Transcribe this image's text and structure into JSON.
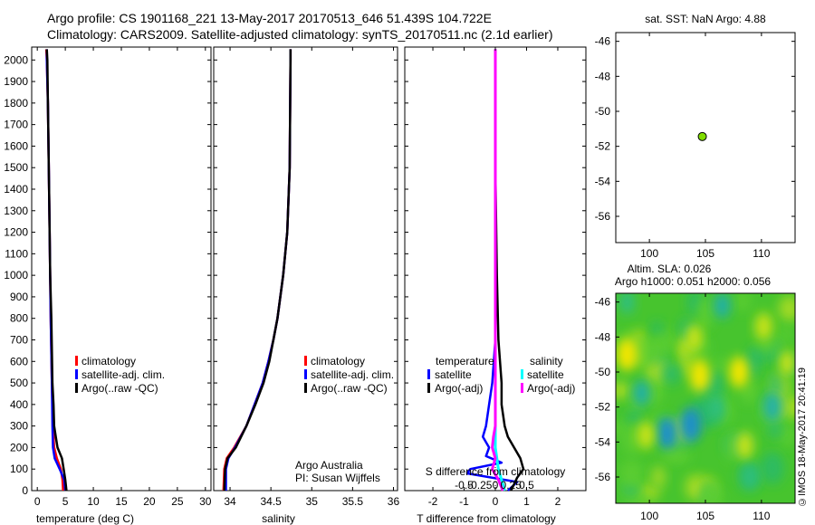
{
  "header": {
    "line1": "Argo profile: CS 1901168_221 13-May-2017 20170513_646 51.439S 104.722E",
    "line2": "Climatology: CARS2009. Satellite-adjusted climatology: synTS_20170511.nc (2.1d earlier)"
  },
  "footer": {
    "credit": "©IMOS 18-May-2017 20:41:19"
  },
  "colors": {
    "climatology": "#ff0000",
    "satellite": "#0000ff",
    "argo": "#000000",
    "sal_satellite": "#00ffff",
    "sal_argo": "#ff00ff",
    "float_marker": "#80dd00"
  },
  "chart_data": [
    {
      "id": "temperature",
      "type": "line",
      "xlabel": "temperature (deg C)",
      "ylabel": "",
      "xlim": [
        -1,
        31
      ],
      "ylim": [
        2060,
        0
      ],
      "xticks": [
        0,
        5,
        10,
        15,
        20,
        25,
        30
      ],
      "yticks": [
        0,
        100,
        200,
        300,
        400,
        500,
        600,
        700,
        800,
        900,
        1000,
        1100,
        1200,
        1300,
        1400,
        1500,
        1600,
        1700,
        1800,
        1900,
        2000
      ],
      "legend": [
        "climatology",
        "satellite-adj. clim.",
        "Argo(..raw -QC)"
      ],
      "series": [
        {
          "name": "climatology",
          "depth": [
            0,
            50,
            100,
            150,
            200,
            300,
            500,
            800,
            1000,
            1400,
            1800,
            2000,
            2050
          ],
          "values": [
            4.6,
            4.5,
            4.2,
            3.5,
            3.0,
            2.8,
            2.6,
            2.4,
            2.3,
            2.1,
            1.9,
            1.7,
            1.6
          ]
        },
        {
          "name": "satellite-adj. clim.",
          "depth": [
            0,
            50,
            100,
            150,
            200,
            300,
            500,
            800,
            1000,
            1400,
            1800,
            2000,
            2050
          ],
          "values": [
            5.0,
            4.8,
            4.0,
            3.1,
            2.8,
            2.7,
            2.6,
            2.4,
            2.3,
            2.1,
            1.9,
            1.7,
            1.7
          ]
        },
        {
          "name": "Argo(..raw -QC)",
          "depth": [
            0,
            50,
            100,
            150,
            200,
            250,
            300,
            400,
            500,
            800,
            1000,
            1400,
            1800,
            2000,
            2050
          ],
          "values": [
            5.2,
            5.0,
            4.7,
            4.4,
            3.6,
            3.3,
            3.0,
            2.9,
            2.7,
            2.5,
            2.3,
            2.1,
            1.9,
            1.8,
            1.7
          ]
        }
      ]
    },
    {
      "id": "salinity",
      "type": "line",
      "xlabel": "salinity",
      "ylabel": "",
      "xlim": [
        33.8,
        36.05
      ],
      "ylim": [
        2060,
        0
      ],
      "xticks": [
        34,
        34.5,
        35,
        35.5,
        36
      ],
      "legend": [
        "climatology",
        "satellite-adj. clim.",
        "Argo(..raw -QC)"
      ],
      "annotations": [
        "Argo Australia",
        "PI: Susan Wijffels"
      ],
      "series": [
        {
          "name": "climatology",
          "depth": [
            0,
            100,
            150,
            200,
            300,
            400,
            500,
            600,
            700,
            800,
            1000,
            1200,
            1500,
            2000,
            2050
          ],
          "values": [
            33.92,
            33.93,
            33.96,
            34.05,
            34.2,
            34.3,
            34.4,
            34.47,
            34.53,
            34.58,
            34.65,
            34.7,
            34.73,
            34.74,
            34.74
          ]
        },
        {
          "name": "satellite-adj. clim.",
          "depth": [
            0,
            100,
            150,
            200,
            300,
            400,
            500,
            600,
            700,
            800,
            1000,
            1200,
            1500,
            2000,
            2050
          ],
          "values": [
            33.95,
            33.95,
            33.98,
            34.06,
            34.2,
            34.3,
            34.4,
            34.47,
            34.53,
            34.58,
            34.65,
            34.7,
            34.73,
            34.74,
            34.74
          ]
        },
        {
          "name": "Argo(..raw -QC)",
          "depth": [
            0,
            100,
            150,
            200,
            300,
            400,
            500,
            600,
            700,
            800,
            1000,
            1200,
            1500,
            2000,
            2050
          ],
          "values": [
            33.93,
            33.94,
            33.97,
            34.07,
            34.2,
            34.31,
            34.41,
            34.48,
            34.53,
            34.58,
            34.65,
            34.7,
            34.73,
            34.74,
            34.74
          ]
        }
      ]
    },
    {
      "id": "differences",
      "type": "line",
      "xlabel": "T difference from climatology",
      "top_xlabel": "S difference from climatology",
      "xlim": [
        -2.9,
        2.9
      ],
      "ylim": [
        2060,
        0
      ],
      "xticks": [
        -2,
        -1,
        0,
        1,
        2
      ],
      "s_ticks": [
        -0.5,
        -0.25,
        0,
        0.25,
        0.5
      ],
      "legend_temperature": {
        "title": "temperature",
        "items": [
          "satellite",
          "Argo(-adj)"
        ]
      },
      "legend_salinity": {
        "title": "salinity",
        "items": [
          "satellite",
          "Argo(-adj)"
        ]
      },
      "series": [
        {
          "name": "T satellite",
          "depth": [
            0,
            40,
            80,
            100,
            130,
            160,
            200,
            250,
            300,
            400,
            500,
            700,
            1000,
            1500,
            2000,
            2050
          ],
          "values": [
            0.4,
            0.7,
            -0.9,
            -0.8,
            0.2,
            -0.3,
            -0.2,
            -0.4,
            -0.3,
            -0.2,
            -0.1,
            0.0,
            0.0,
            0.0,
            0.0,
            0.0
          ]
        },
        {
          "name": "T Argo(-adj)",
          "depth": [
            0,
            30,
            60,
            100,
            150,
            200,
            250,
            300,
            400,
            500,
            700,
            1000,
            1500,
            2000,
            2050
          ],
          "values": [
            0.5,
            0.6,
            0.7,
            0.9,
            0.8,
            0.6,
            0.4,
            0.3,
            0.2,
            0.2,
            0.1,
            0.05,
            0.0,
            0.0,
            0.0
          ]
        },
        {
          "name": "S satellite",
          "depth": [
            0,
            50,
            100,
            200,
            300,
            500,
            1000,
            1500,
            2000,
            2050
          ],
          "values": [
            0.15,
            0.1,
            0.05,
            0.0,
            0.0,
            0.0,
            0.0,
            0.0,
            0.0,
            0.0
          ]
        },
        {
          "name": "S Argo(-adj)",
          "depth": [
            0,
            50,
            100,
            150,
            200,
            250,
            300,
            400,
            500,
            1000,
            1500,
            2000,
            2050
          ],
          "values": [
            0.12,
            0.05,
            -0.05,
            0.0,
            -0.05,
            -0.03,
            0.0,
            0.0,
            0.0,
            0.0,
            0.0,
            0.0,
            0.0
          ]
        }
      ]
    },
    {
      "id": "sst_map",
      "type": "scatter",
      "title": "sat. SST: NaN Argo: 4.88",
      "xlim": [
        97,
        113
      ],
      "ylim": [
        -57.5,
        -45.5
      ],
      "xticks": [
        100,
        105,
        110
      ],
      "yticks": [
        -46,
        -48,
        -50,
        -52,
        -54,
        -56
      ],
      "point": {
        "lon": 104.722,
        "lat": -51.439
      }
    },
    {
      "id": "sla_map",
      "type": "heatmap",
      "title_line1": "Altim. SLA: 0.026",
      "title_line2": "Argo h1000: 0.051 h2000: 0.056",
      "xlim": [
        97,
        113
      ],
      "ylim": [
        -57.5,
        -45.5
      ],
      "xticks": [
        100,
        105,
        110
      ],
      "yticks": [
        -46,
        -48,
        -50,
        -52,
        -54,
        -56
      ],
      "blobs": [
        {
          "lon": 98.0,
          "lat": -49.0,
          "v": 0.9
        },
        {
          "lon": 101.6,
          "lat": -53.5,
          "v": -0.8
        },
        {
          "lon": 99.3,
          "lat": -51.2,
          "v": -0.5
        },
        {
          "lon": 104.0,
          "lat": -48.0,
          "v": 0.5
        },
        {
          "lon": 104.5,
          "lat": -50.2,
          "v": 0.9
        },
        {
          "lon": 103.7,
          "lat": -53.0,
          "v": -1.0
        },
        {
          "lon": 99.7,
          "lat": -53.6,
          "v": 0.6
        },
        {
          "lon": 108.0,
          "lat": -50.0,
          "v": 0.8
        },
        {
          "lon": 110.2,
          "lat": -47.4,
          "v": 0.6
        },
        {
          "lon": 111.0,
          "lat": -52.0,
          "v": -0.7
        },
        {
          "lon": 108.5,
          "lat": -54.2,
          "v": 0.6
        },
        {
          "lon": 106.5,
          "lat": -46.2,
          "v": -0.5
        },
        {
          "lon": 112.3,
          "lat": -49.5,
          "v": 0.5
        },
        {
          "lon": 100.8,
          "lat": -56.0,
          "v": 0.3
        },
        {
          "lon": 106.0,
          "lat": -52.0,
          "v": -0.4
        },
        {
          "lon": 98.0,
          "lat": -46.0,
          "v": -0.4
        },
        {
          "lon": 109.0,
          "lat": -56.0,
          "v": -0.3
        }
      ]
    }
  ]
}
